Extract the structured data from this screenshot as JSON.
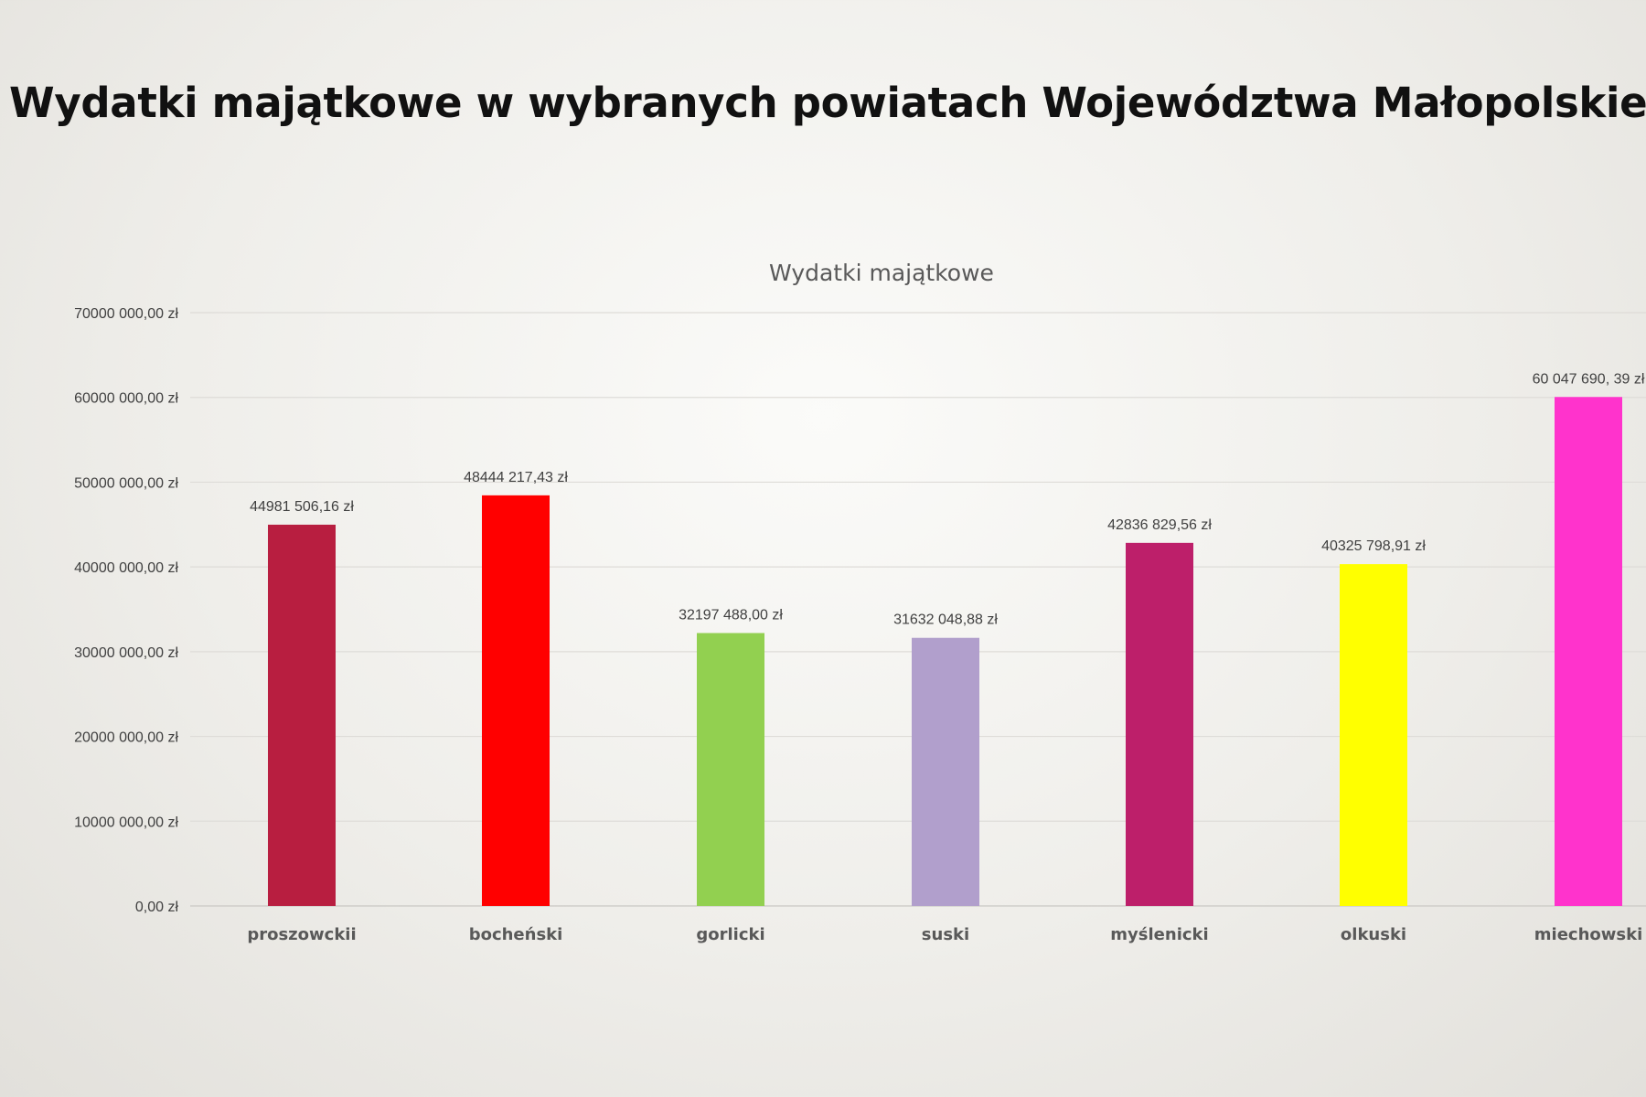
{
  "slide": {
    "title": "Wydatki majątkowe w wybranych powiatach Województwa Małopolskiego"
  },
  "chart_data": {
    "type": "bar",
    "title": "Wydatki majątkowe",
    "xlabel": "",
    "ylabel": "",
    "ylim": [
      0,
      70000000
    ],
    "grid": true,
    "legend": "none",
    "y_ticks": [
      {
        "value": 0,
        "label": "0,00 zł"
      },
      {
        "value": 10000000,
        "label": "10000 000,00 zł"
      },
      {
        "value": 20000000,
        "label": "20000 000,00 zł"
      },
      {
        "value": 30000000,
        "label": "30000 000,00 zł"
      },
      {
        "value": 40000000,
        "label": "40000 000,00 zł"
      },
      {
        "value": 50000000,
        "label": "50000 000,00 zł"
      },
      {
        "value": 60000000,
        "label": "60000 000,00 zł"
      },
      {
        "value": 70000000,
        "label": "70000 000,00 zł"
      }
    ],
    "categories": [
      "proszowckii",
      "bocheński",
      "gorlicki",
      "suski",
      "myślenicki",
      "olkuski",
      "miechowski"
    ],
    "values": [
      44981506.16,
      48444217.43,
      32197488.0,
      31632048.88,
      42836829.56,
      40325798.91,
      60047690.39
    ],
    "data_labels": [
      "44981 506,16 zł",
      "48444 217,43 zł",
      "32197 488,00 zł",
      "31632 048,88 zł",
      "42836 829,56 zł",
      "40325 798,91 zł",
      "60 047 690, 39 zł"
    ],
    "colors": [
      "#b81e40",
      "#ff0000",
      "#92d050",
      "#b19fcc",
      "#bd1f6a",
      "#ffff00",
      "#ff33cc"
    ]
  }
}
